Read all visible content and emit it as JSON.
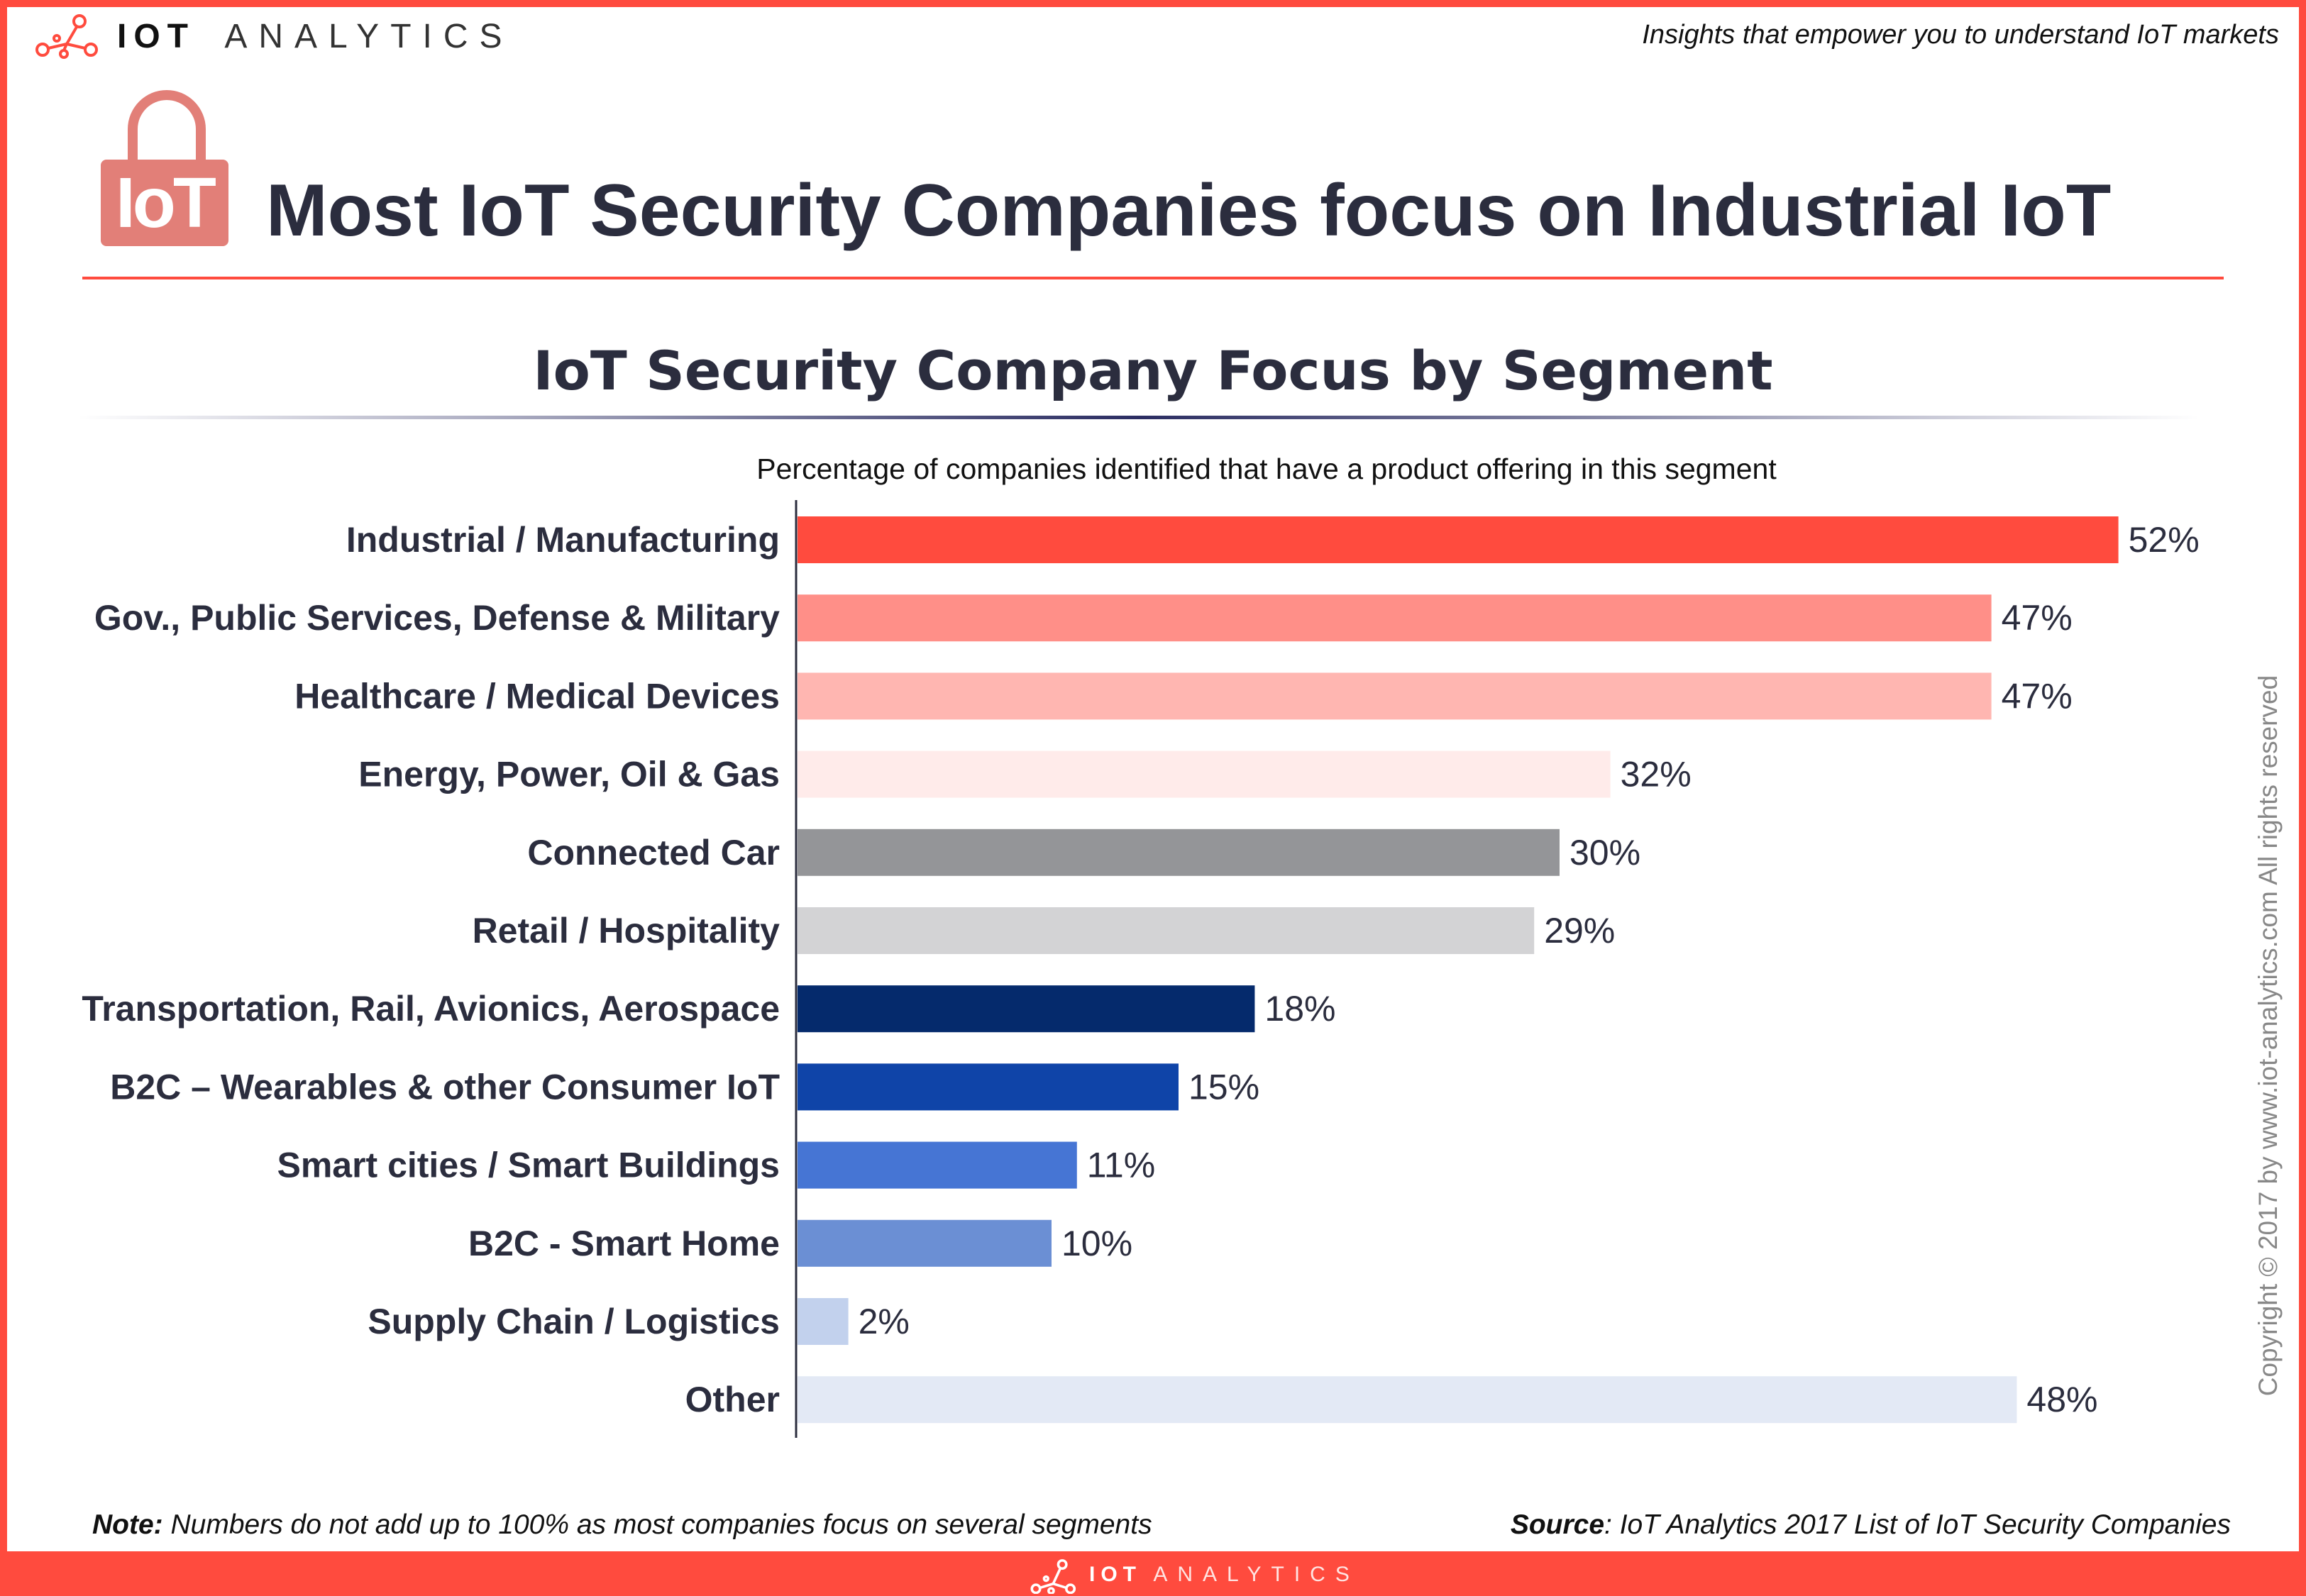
{
  "header": {
    "brand_bold": "IOT",
    "brand_light": "ANALYTICS",
    "tagline": "Insights that empower you to understand IoT markets",
    "lock_icon_text": "IoT",
    "title": "Most IoT Security Companies focus on Industrial IoT"
  },
  "colors": {
    "accent": "#ff4b3e",
    "text": "#2b2d3e"
  },
  "chart_data": {
    "type": "bar",
    "orientation": "horizontal",
    "title": "IoT Security Company Focus by Segment",
    "subtitle": "Percentage of companies identified that have a product offering in this segment",
    "categories": [
      "Industrial / Manufacturing",
      "Gov., Public Services, Defense & Military",
      "Healthcare / Medical Devices",
      "Energy, Power, Oil & Gas",
      "Connected Car",
      "Retail / Hospitality",
      "Transportation, Rail, Avionics, Aerospace",
      "B2C – Wearables & other Consumer IoT",
      "Smart cities / Smart Buildings",
      "B2C - Smart Home",
      "Supply Chain / Logistics",
      "Other"
    ],
    "values": [
      52,
      47,
      47,
      32,
      30,
      29,
      18,
      15,
      11,
      10,
      2,
      48
    ],
    "data_labels": [
      "52%",
      "47%",
      "47%",
      "32%",
      "30%",
      "29%",
      "18%",
      "15%",
      "11%",
      "10%",
      "2%",
      "48%"
    ],
    "bar_colors": [
      "#ff4b3e",
      "#ff8f88",
      "#ffb6b1",
      "#ffebea",
      "#949598",
      "#d3d3d5",
      "#052a6c",
      "#0f44a8",
      "#4675d4",
      "#6b8fd4",
      "#c2d1ed",
      "#e3e9f5"
    ],
    "unit": "%",
    "grid": false
  },
  "footer": {
    "note_label": "Note:",
    "note_text": " Numbers do not add up to 100% as most companies focus on several segments",
    "source_label": "Source",
    "source_text": ": IoT Analytics 2017 List of IoT Security Companies",
    "copyright": "Copyright © 2017 by www.iot-analytics.com All rights reserved",
    "brand_bold": "IOT",
    "brand_light": "ANALYTICS"
  }
}
